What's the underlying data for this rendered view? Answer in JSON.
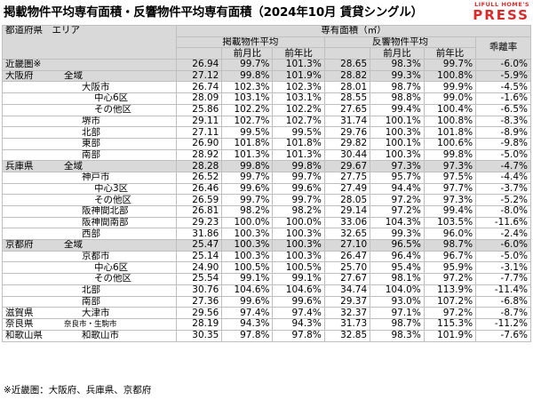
{
  "title": "掲載物件平均専有面積・反響物件平均専有面積（2024年10月 賃貸シングル）",
  "logo": {
    "top": "LIFULL HOME'S",
    "main": "PRESS"
  },
  "headers": {
    "region": "都道府県　エリア",
    "area_group": "専有面積（㎡）",
    "listing": "掲載物件平均",
    "response": "反響物件平均",
    "mom": "前月比",
    "yoy": "前年比",
    "divergence": "乖離率"
  },
  "rows": [
    {
      "pref": "近畿圏※",
      "area": "",
      "level": 0,
      "l": "26.94",
      "lm": "99.7%",
      "ly": "101.3%",
      "r": "28.65",
      "rm": "98.3%",
      "ry": "99.7%",
      "d": "-6.0%",
      "shade": true,
      "section": true
    },
    {
      "pref": "大阪府",
      "area": "全域",
      "level": 0,
      "l": "27.12",
      "lm": "99.8%",
      "ly": "101.9%",
      "r": "28.82",
      "rm": "99.3%",
      "ry": "100.8%",
      "d": "-5.9%",
      "shade": true,
      "section": true
    },
    {
      "pref": "",
      "area": "大阪市",
      "level": 1,
      "l": "26.74",
      "lm": "102.3%",
      "ly": "102.3%",
      "r": "28.01",
      "rm": "98.7%",
      "ry": "99.9%",
      "d": "-4.5%",
      "shade": false,
      "section": false
    },
    {
      "pref": "",
      "area": "中心6区",
      "level": 2,
      "l": "28.09",
      "lm": "103.1%",
      "ly": "103.1%",
      "r": "28.55",
      "rm": "98.8%",
      "ry": "99.0%",
      "d": "-1.6%",
      "shade": false,
      "section": false
    },
    {
      "pref": "",
      "area": "その他区",
      "level": 2,
      "l": "25.86",
      "lm": "102.2%",
      "ly": "102.2%",
      "r": "27.65",
      "rm": "99.4%",
      "ry": "100.4%",
      "d": "-6.5%",
      "shade": false,
      "section": false
    },
    {
      "pref": "",
      "area": "堺市",
      "level": 1,
      "l": "29.11",
      "lm": "102.7%",
      "ly": "102.7%",
      "r": "31.74",
      "rm": "100.1%",
      "ry": "100.8%",
      "d": "-8.3%",
      "shade": false,
      "section": false
    },
    {
      "pref": "",
      "area": "北部",
      "level": 1,
      "l": "27.11",
      "lm": "99.5%",
      "ly": "99.5%",
      "r": "29.76",
      "rm": "100.3%",
      "ry": "101.8%",
      "d": "-8.9%",
      "shade": false,
      "section": false
    },
    {
      "pref": "",
      "area": "東部",
      "level": 1,
      "l": "26.90",
      "lm": "101.8%",
      "ly": "101.8%",
      "r": "29.82",
      "rm": "100.1%",
      "ry": "100.6%",
      "d": "-9.8%",
      "shade": false,
      "section": false
    },
    {
      "pref": "",
      "area": "南部",
      "level": 1,
      "l": "28.92",
      "lm": "101.3%",
      "ly": "101.3%",
      "r": "30.44",
      "rm": "100.3%",
      "ry": "99.8%",
      "d": "-5.0%",
      "shade": false,
      "section": false
    },
    {
      "pref": "兵庫県",
      "area": "全域",
      "level": 0,
      "l": "28.28",
      "lm": "99.8%",
      "ly": "99.8%",
      "r": "29.67",
      "rm": "97.3%",
      "ry": "97.3%",
      "d": "-4.7%",
      "shade": true,
      "section": true
    },
    {
      "pref": "",
      "area": "神戸市",
      "level": 1,
      "l": "26.52",
      "lm": "99.7%",
      "ly": "99.7%",
      "r": "27.75",
      "rm": "95.7%",
      "ry": "97.5%",
      "d": "-4.4%",
      "shade": false,
      "section": false
    },
    {
      "pref": "",
      "area": "中心3区",
      "level": 2,
      "l": "26.46",
      "lm": "99.6%",
      "ly": "99.6%",
      "r": "27.49",
      "rm": "94.4%",
      "ry": "97.7%",
      "d": "-3.7%",
      "shade": false,
      "section": false
    },
    {
      "pref": "",
      "area": "その他区",
      "level": 2,
      "l": "26.59",
      "lm": "99.7%",
      "ly": "99.7%",
      "r": "28.05",
      "rm": "97.2%",
      "ry": "97.3%",
      "d": "-5.2%",
      "shade": false,
      "section": false
    },
    {
      "pref": "",
      "area": "阪神間北部",
      "level": 1,
      "l": "26.81",
      "lm": "98.2%",
      "ly": "98.2%",
      "r": "29.14",
      "rm": "97.2%",
      "ry": "99.4%",
      "d": "-8.0%",
      "shade": false,
      "section": false
    },
    {
      "pref": "",
      "area": "阪神間南部",
      "level": 1,
      "l": "29.23",
      "lm": "100.0%",
      "ly": "100.0%",
      "r": "33.06",
      "rm": "104.3%",
      "ry": "103.5%",
      "d": "-11.6%",
      "shade": false,
      "section": false
    },
    {
      "pref": "",
      "area": "西部",
      "level": 1,
      "l": "31.86",
      "lm": "100.3%",
      "ly": "100.3%",
      "r": "32.65",
      "rm": "99.3%",
      "ry": "96.0%",
      "d": "-2.4%",
      "shade": false,
      "section": false
    },
    {
      "pref": "京都府",
      "area": "全域",
      "level": 0,
      "l": "25.47",
      "lm": "100.3%",
      "ly": "100.3%",
      "r": "27.10",
      "rm": "96.5%",
      "ry": "98.7%",
      "d": "-6.0%",
      "shade": true,
      "section": true
    },
    {
      "pref": "",
      "area": "京都市",
      "level": 1,
      "l": "25.14",
      "lm": "100.3%",
      "ly": "100.3%",
      "r": "26.47",
      "rm": "96.4%",
      "ry": "96.7%",
      "d": "-5.0%",
      "shade": false,
      "section": false
    },
    {
      "pref": "",
      "area": "中心6区",
      "level": 2,
      "l": "24.90",
      "lm": "100.5%",
      "ly": "100.5%",
      "r": "25.70",
      "rm": "95.4%",
      "ry": "95.9%",
      "d": "-3.1%",
      "shade": false,
      "section": false
    },
    {
      "pref": "",
      "area": "その他区",
      "level": 2,
      "l": "25.54",
      "lm": "99.1%",
      "ly": "99.1%",
      "r": "27.67",
      "rm": "98.1%",
      "ry": "97.2%",
      "d": "-7.7%",
      "shade": false,
      "section": false
    },
    {
      "pref": "",
      "area": "北部",
      "level": 1,
      "l": "30.76",
      "lm": "104.6%",
      "ly": "104.6%",
      "r": "34.74",
      "rm": "104.0%",
      "ry": "113.9%",
      "d": "-11.4%",
      "shade": false,
      "section": false
    },
    {
      "pref": "",
      "area": "南部",
      "level": 1,
      "l": "27.36",
      "lm": "99.6%",
      "ly": "99.6%",
      "r": "29.37",
      "rm": "93.0%",
      "ry": "107.2%",
      "d": "-6.8%",
      "shade": false,
      "section": false
    },
    {
      "pref": "滋賀県",
      "area": "大津市",
      "level": 3,
      "l": "29.56",
      "lm": "97.4%",
      "ly": "97.4%",
      "r": "32.37",
      "rm": "97.1%",
      "ry": "97.2%",
      "d": "-8.7%",
      "shade": false,
      "section": true
    },
    {
      "pref": "奈良県",
      "area": "奈良市・生駒市",
      "level": 4,
      "l": "28.19",
      "lm": "94.3%",
      "ly": "94.3%",
      "r": "31.73",
      "rm": "98.7%",
      "ry": "115.3%",
      "d": "-11.2%",
      "shade": false,
      "section": true
    },
    {
      "pref": "和歌山県",
      "area": "和歌山市",
      "level": 3,
      "l": "30.35",
      "lm": "97.8%",
      "ly": "97.8%",
      "r": "32.85",
      "rm": "98.3%",
      "ry": "101.9%",
      "d": "-7.6%",
      "shade": false,
      "section": true
    }
  ],
  "footnote": "※近畿圏：大阪府、兵庫県、京都府"
}
